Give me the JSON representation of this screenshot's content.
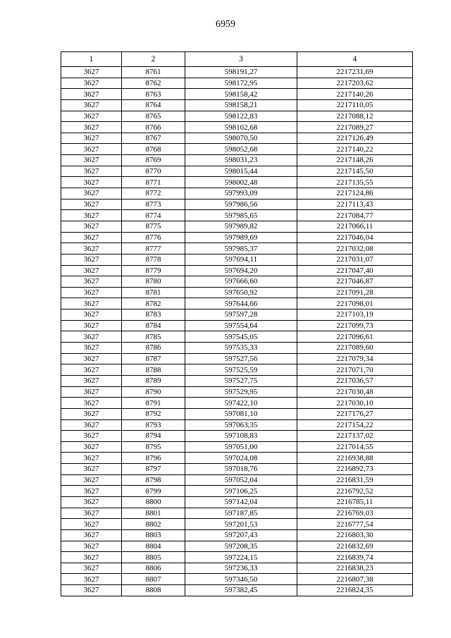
{
  "page_number": "6959",
  "table": {
    "headers": [
      "1",
      "2",
      "3",
      "4"
    ],
    "rows": [
      [
        "3627",
        "8761",
        "598191,27",
        "2217231,69"
      ],
      [
        "3627",
        "8762",
        "598172,95",
        "2217203,62"
      ],
      [
        "3627",
        "8763",
        "598158,42",
        "2217140,26"
      ],
      [
        "3627",
        "8764",
        "598158,21",
        "2217110,05"
      ],
      [
        "3627",
        "8765",
        "598122,83",
        "2217088,12"
      ],
      [
        "3627",
        "8766",
        "598102,68",
        "2217089,27"
      ],
      [
        "3627",
        "8767",
        "598070,50",
        "2217126,49"
      ],
      [
        "3627",
        "8768",
        "598052,68",
        "2217140,22"
      ],
      [
        "3627",
        "8769",
        "598031,23",
        "2217148,26"
      ],
      [
        "3627",
        "8770",
        "598015,44",
        "2217145,50"
      ],
      [
        "3627",
        "8771",
        "598002,48",
        "2217135,55"
      ],
      [
        "3627",
        "8772",
        "597993,09",
        "2217124,86"
      ],
      [
        "3627",
        "8773",
        "597986,56",
        "2217113,43"
      ],
      [
        "3627",
        "8774",
        "597985,65",
        "2217084,77"
      ],
      [
        "3627",
        "8775",
        "597989,82",
        "2217066,11"
      ],
      [
        "3627",
        "8776",
        "597989,69",
        "2217046,04"
      ],
      [
        "3627",
        "8777",
        "597985,37",
        "2217032,08"
      ],
      [
        "3627",
        "8778",
        "597694,11",
        "2217031,07"
      ],
      [
        "3627",
        "8779",
        "597694,20",
        "2217047,40"
      ],
      [
        "3627",
        "8780",
        "597666,60",
        "2217046,87"
      ],
      [
        "3627",
        "8781",
        "597650,92",
        "2217091,28"
      ],
      [
        "3627",
        "8782",
        "597644,66",
        "2217098,01"
      ],
      [
        "3627",
        "8783",
        "597597,28",
        "2217103,19"
      ],
      [
        "3627",
        "8784",
        "597554,64",
        "2217099,73"
      ],
      [
        "3627",
        "8785",
        "597545,05",
        "2217096,61"
      ],
      [
        "3627",
        "8786",
        "597535,33",
        "2217089,60"
      ],
      [
        "3627",
        "8787",
        "597527,56",
        "2217079,34"
      ],
      [
        "3627",
        "8788",
        "597525,59",
        "2217071,70"
      ],
      [
        "3627",
        "8789",
        "597527,75",
        "2217036,57"
      ],
      [
        "3627",
        "8790",
        "597529,95",
        "2217030,48"
      ],
      [
        "3627",
        "8791",
        "597422,10",
        "2217030,10"
      ],
      [
        "3627",
        "8792",
        "597081,10",
        "2217176,27"
      ],
      [
        "3627",
        "8793",
        "597063,35",
        "2217154,22"
      ],
      [
        "3627",
        "8794",
        "597108,83",
        "2217137,02"
      ],
      [
        "3627",
        "8795",
        "597051,00",
        "2217014,55"
      ],
      [
        "3627",
        "8796",
        "597024,08",
        "2216938,88"
      ],
      [
        "3627",
        "8797",
        "597018,76",
        "2216892,73"
      ],
      [
        "3627",
        "8798",
        "597052,04",
        "2216831,59"
      ],
      [
        "3627",
        "8799",
        "597106,25",
        "2216792,52"
      ],
      [
        "3627",
        "8800",
        "597142,04",
        "2216785,11"
      ],
      [
        "3627",
        "8801",
        "597187,85",
        "2216769,03"
      ],
      [
        "3627",
        "8802",
        "597201,53",
        "2216777,54"
      ],
      [
        "3627",
        "8803",
        "597207,43",
        "2216803,30"
      ],
      [
        "3627",
        "8804",
        "597208,35",
        "2216832,69"
      ],
      [
        "3627",
        "8805",
        "597224,15",
        "2216839,74"
      ],
      [
        "3627",
        "8806",
        "597236,33",
        "2216838,23"
      ],
      [
        "3627",
        "8807",
        "597346,50",
        "2216807,38"
      ],
      [
        "3627",
        "8808",
        "597382,45",
        "2216824,35"
      ]
    ]
  }
}
